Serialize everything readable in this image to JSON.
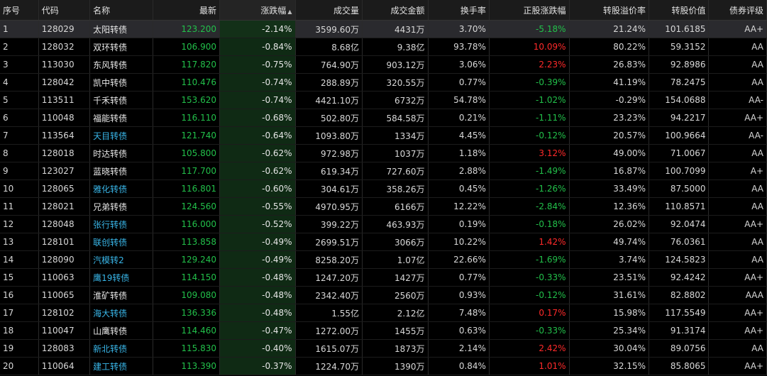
{
  "columns": [
    {
      "key": "idx",
      "label": "序号",
      "w": 54,
      "align": "l"
    },
    {
      "key": "code",
      "label": "代码",
      "w": 72,
      "align": "l"
    },
    {
      "key": "name",
      "label": "名称",
      "w": 88,
      "align": "l"
    },
    {
      "key": "price",
      "label": "最新",
      "w": 94,
      "align": "r"
    },
    {
      "key": "chg",
      "label": "涨跌幅",
      "w": 106,
      "align": "r",
      "sorted": true
    },
    {
      "key": "vol",
      "label": "成交量",
      "w": 94,
      "align": "r"
    },
    {
      "key": "amt",
      "label": "成交金额",
      "w": 92,
      "align": "r"
    },
    {
      "key": "turn",
      "label": "换手率",
      "w": 86,
      "align": "r"
    },
    {
      "key": "stk",
      "label": "正股涨跌幅",
      "w": 112,
      "align": "r"
    },
    {
      "key": "prem",
      "label": "转股溢价率",
      "w": 112,
      "align": "r"
    },
    {
      "key": "cval",
      "label": "转股价值",
      "w": 84,
      "align": "r"
    },
    {
      "key": "rating",
      "label": "债券评级",
      "w": 81,
      "align": "r"
    }
  ],
  "sort_indicator": "▲",
  "rows": [
    {
      "idx": "1",
      "code": "128029",
      "name": "太阳转债",
      "nameColor": "white",
      "price": "123.200",
      "chg": "-2.14%",
      "vol": "3599.60万",
      "amt": "4431万",
      "turn": "3.70%",
      "stk": "-5.18%",
      "stkColor": "green",
      "prem": "21.24%",
      "cval": "101.6185",
      "rating": "AA+"
    },
    {
      "idx": "2",
      "code": "128032",
      "name": "双环转债",
      "nameColor": "white",
      "price": "106.900",
      "chg": "-0.84%",
      "vol": "8.68亿",
      "amt": "9.38亿",
      "turn": "93.78%",
      "stk": "10.09%",
      "stkColor": "red",
      "prem": "80.22%",
      "cval": "59.3152",
      "rating": "AA"
    },
    {
      "idx": "3",
      "code": "113030",
      "name": "东风转债",
      "nameColor": "white",
      "price": "117.820",
      "chg": "-0.75%",
      "vol": "764.90万",
      "amt": "903.12万",
      "turn": "3.06%",
      "stk": "2.23%",
      "stkColor": "red",
      "prem": "26.83%",
      "cval": "92.8986",
      "rating": "AA"
    },
    {
      "idx": "4",
      "code": "128042",
      "name": "凯中转债",
      "nameColor": "white",
      "price": "110.476",
      "chg": "-0.74%",
      "vol": "288.89万",
      "amt": "320.55万",
      "turn": "0.77%",
      "stk": "-0.39%",
      "stkColor": "green",
      "prem": "41.19%",
      "cval": "78.2475",
      "rating": "AA"
    },
    {
      "idx": "5",
      "code": "113511",
      "name": "千禾转债",
      "nameColor": "white",
      "price": "153.620",
      "chg": "-0.74%",
      "vol": "4421.10万",
      "amt": "6732万",
      "turn": "54.78%",
      "stk": "-1.02%",
      "stkColor": "green",
      "prem": "-0.29%",
      "cval": "154.0688",
      "rating": "AA-"
    },
    {
      "idx": "6",
      "code": "110048",
      "name": "福能转债",
      "nameColor": "white",
      "price": "116.110",
      "chg": "-0.68%",
      "vol": "502.80万",
      "amt": "584.58万",
      "turn": "0.21%",
      "stk": "-1.11%",
      "stkColor": "green",
      "prem": "23.23%",
      "cval": "94.2217",
      "rating": "AA+"
    },
    {
      "idx": "7",
      "code": "113564",
      "name": "天目转债",
      "nameColor": "cyan",
      "price": "121.740",
      "chg": "-0.64%",
      "vol": "1093.80万",
      "amt": "1334万",
      "turn": "4.45%",
      "stk": "-0.12%",
      "stkColor": "green",
      "prem": "20.57%",
      "cval": "100.9664",
      "rating": "AA-"
    },
    {
      "idx": "8",
      "code": "128018",
      "name": "时达转债",
      "nameColor": "white",
      "price": "105.800",
      "chg": "-0.62%",
      "vol": "972.98万",
      "amt": "1037万",
      "turn": "1.18%",
      "stk": "3.12%",
      "stkColor": "red",
      "prem": "49.00%",
      "cval": "71.0067",
      "rating": "AA"
    },
    {
      "idx": "9",
      "code": "123027",
      "name": "蓝晓转债",
      "nameColor": "white",
      "price": "117.700",
      "chg": "-0.62%",
      "vol": "619.34万",
      "amt": "727.60万",
      "turn": "2.88%",
      "stk": "-1.49%",
      "stkColor": "green",
      "prem": "16.87%",
      "cval": "100.7099",
      "rating": "A+"
    },
    {
      "idx": "10",
      "code": "128065",
      "name": "雅化转债",
      "nameColor": "cyan",
      "price": "116.801",
      "chg": "-0.60%",
      "vol": "304.61万",
      "amt": "358.26万",
      "turn": "0.45%",
      "stk": "-1.26%",
      "stkColor": "green",
      "prem": "33.49%",
      "cval": "87.5000",
      "rating": "AA"
    },
    {
      "idx": "11",
      "code": "128021",
      "name": "兄弟转债",
      "nameColor": "white",
      "price": "124.560",
      "chg": "-0.55%",
      "vol": "4970.95万",
      "amt": "6166万",
      "turn": "12.22%",
      "stk": "-2.84%",
      "stkColor": "green",
      "prem": "12.36%",
      "cval": "110.8571",
      "rating": "AA"
    },
    {
      "idx": "12",
      "code": "128048",
      "name": "张行转债",
      "nameColor": "cyan",
      "price": "116.000",
      "chg": "-0.52%",
      "vol": "399.22万",
      "amt": "463.93万",
      "turn": "0.19%",
      "stk": "-0.18%",
      "stkColor": "green",
      "prem": "26.02%",
      "cval": "92.0474",
      "rating": "AA+"
    },
    {
      "idx": "13",
      "code": "128101",
      "name": "联创转债",
      "nameColor": "cyan",
      "price": "113.858",
      "chg": "-0.49%",
      "vol": "2699.51万",
      "amt": "3066万",
      "turn": "10.22%",
      "stk": "1.42%",
      "stkColor": "red",
      "prem": "49.74%",
      "cval": "76.0361",
      "rating": "AA"
    },
    {
      "idx": "14",
      "code": "128090",
      "name": "汽模转2",
      "nameColor": "cyan",
      "price": "129.240",
      "chg": "-0.49%",
      "vol": "8258.20万",
      "amt": "1.07亿",
      "turn": "22.66%",
      "stk": "-1.69%",
      "stkColor": "green",
      "prem": "3.74%",
      "cval": "124.5823",
      "rating": "AA"
    },
    {
      "idx": "15",
      "code": "110063",
      "name": "鹰19转债",
      "nameColor": "cyan",
      "price": "114.150",
      "chg": "-0.48%",
      "vol": "1247.20万",
      "amt": "1427万",
      "turn": "0.77%",
      "stk": "-0.33%",
      "stkColor": "green",
      "prem": "23.51%",
      "cval": "92.4242",
      "rating": "AA+"
    },
    {
      "idx": "16",
      "code": "110065",
      "name": "淮矿转债",
      "nameColor": "white",
      "price": "109.080",
      "chg": "-0.48%",
      "vol": "2342.40万",
      "amt": "2560万",
      "turn": "0.93%",
      "stk": "-0.12%",
      "stkColor": "green",
      "prem": "31.61%",
      "cval": "82.8802",
      "rating": "AAA"
    },
    {
      "idx": "17",
      "code": "128102",
      "name": "海大转债",
      "nameColor": "cyan",
      "price": "136.336",
      "chg": "-0.48%",
      "vol": "1.55亿",
      "amt": "2.12亿",
      "turn": "7.48%",
      "stk": "0.17%",
      "stkColor": "red",
      "prem": "15.98%",
      "cval": "117.5549",
      "rating": "AA+"
    },
    {
      "idx": "18",
      "code": "110047",
      "name": "山鹰转债",
      "nameColor": "white",
      "price": "114.460",
      "chg": "-0.47%",
      "vol": "1272.00万",
      "amt": "1455万",
      "turn": "0.63%",
      "stk": "-0.33%",
      "stkColor": "green",
      "prem": "25.34%",
      "cval": "91.3174",
      "rating": "AA+"
    },
    {
      "idx": "19",
      "code": "128083",
      "name": "新北转债",
      "nameColor": "cyan",
      "price": "115.830",
      "chg": "-0.40%",
      "vol": "1615.07万",
      "amt": "1873万",
      "turn": "2.14%",
      "stk": "2.42%",
      "stkColor": "red",
      "prem": "30.04%",
      "cval": "89.0756",
      "rating": "AA"
    },
    {
      "idx": "20",
      "code": "110064",
      "name": "建工转债",
      "nameColor": "cyan",
      "price": "113.390",
      "chg": "-0.37%",
      "vol": "1224.70万",
      "amt": "1390万",
      "turn": "0.84%",
      "stk": "1.01%",
      "stkColor": "red",
      "prem": "32.15%",
      "cval": "85.8065",
      "rating": "AA+"
    }
  ],
  "selected_row": 0,
  "colors": {
    "price": "#22c04a",
    "chg_fill": "#0f2a14",
    "up": "#ff2a2a",
    "down": "#22c04a"
  }
}
